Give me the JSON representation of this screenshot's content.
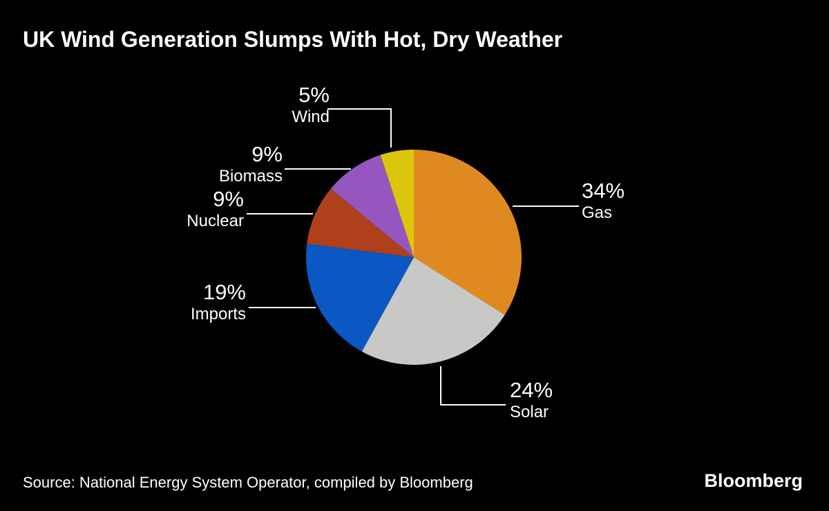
{
  "title": "UK Wind Generation Slumps With Hot, Dry Weather",
  "source": "Source: National Energy System Operator, compiled by Bloomberg",
  "brand": "Bloomberg",
  "colors": {
    "background": "#000000",
    "text": "#ffffff",
    "leader_line": "#ffffff"
  },
  "chart_data": {
    "type": "pie",
    "title": "UK Wind Generation Slumps With Hot, Dry Weather",
    "unit": "%",
    "start_angle": "top",
    "direction": "clockwise",
    "legend_position": "callouts",
    "slices": [
      {
        "label": "Gas",
        "value": 34,
        "pct_label": "34%",
        "color": "#DE8A20"
      },
      {
        "label": "Solar",
        "value": 24,
        "pct_label": "24%",
        "color": "#C8C8C6"
      },
      {
        "label": "Imports",
        "value": 19,
        "pct_label": "19%",
        "color": "#0B57C4"
      },
      {
        "label": "Nuclear",
        "value": 9,
        "pct_label": "9%",
        "color": "#AE401C"
      },
      {
        "label": "Biomass",
        "value": 9,
        "pct_label": "9%",
        "color": "#9656C0"
      },
      {
        "label": "Wind",
        "value": 5,
        "pct_label": "5%",
        "color": "#DCC50D"
      }
    ]
  }
}
